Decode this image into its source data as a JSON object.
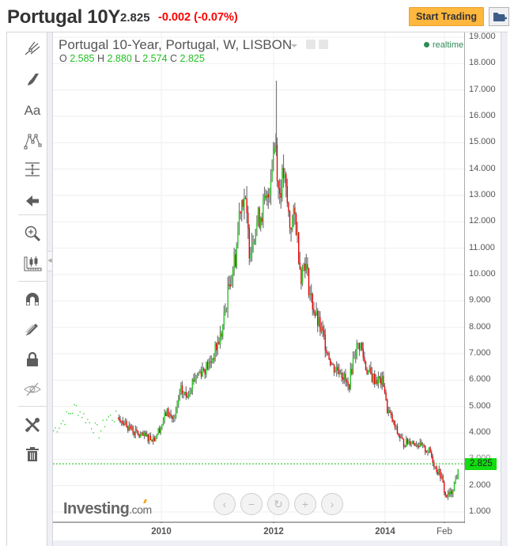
{
  "header": {
    "title": "Portugal 10Y",
    "price": "2.825",
    "change": "-0.002 (-0.07%)",
    "start_trading_label": "Start Trading",
    "add_to_portfolio_icon": "folder-plus-icon"
  },
  "toolbar": {
    "items": [
      {
        "name": "trend-line-tools",
        "icon": "crossed-lines-icon"
      },
      {
        "name": "brush-tool",
        "icon": "brush-icon"
      },
      {
        "name": "text-tool",
        "icon": "text-icon",
        "label": "Aa"
      },
      {
        "name": "pattern-tool",
        "icon": "pattern-icon"
      },
      {
        "name": "measure-tool",
        "icon": "measure-icon"
      },
      {
        "name": "back-tool",
        "icon": "arrow-left-icon"
      },
      {
        "name": "zoom-in-tool",
        "icon": "magnifier-plus-icon"
      },
      {
        "name": "chart-type-tool",
        "icon": "candles-ruler-icon"
      },
      {
        "name": "magnet-tool",
        "icon": "magnet-icon"
      },
      {
        "name": "drawing-mode-tool",
        "icon": "pencil-icon"
      },
      {
        "name": "lock-tool",
        "icon": "lock-icon"
      },
      {
        "name": "hide-tool",
        "icon": "eye-crossed-icon"
      },
      {
        "name": "settings-tool",
        "icon": "tools-icon"
      },
      {
        "name": "delete-tool",
        "icon": "trash-icon"
      }
    ]
  },
  "legend": {
    "title": "Portugal 10-Year, Portugal, W, LISBON",
    "o_label": "O",
    "o": "2.585",
    "h_label": "H",
    "h": "2.880",
    "l_label": "L",
    "l": "2.574",
    "c_label": "C",
    "c": "2.825",
    "realtime": "realtime"
  },
  "price_tag": "2.825",
  "logo": {
    "main": "Investing",
    "suffix": ".com"
  },
  "nav_buttons": [
    "‹",
    "−",
    "↻",
    "+",
    "›"
  ],
  "colors": {
    "up": "#22cc22",
    "down": "#ee0000",
    "wick": "#777777",
    "price_line": "#11bb11",
    "accent_button": "#ffb73e",
    "change_negative": "#ff0000"
  },
  "chart_data": {
    "type": "candlestick",
    "title": "Portugal 10-Year, Portugal, W, LISBON",
    "interval": "W",
    "xlabel": "",
    "ylabel": "",
    "x_tick_labels": [
      "2010",
      "2012",
      "2014",
      "Feb"
    ],
    "y_tick_labels": [
      "1.000",
      "2.000",
      "3.000",
      "4.000",
      "5.000",
      "6.000",
      "7.000",
      "8.000",
      "9.000",
      "10.000",
      "11.000",
      "12.000",
      "13.000",
      "14.000",
      "15.000",
      "16.000",
      "17.000",
      "18.000",
      "19.000"
    ],
    "ylim": [
      1,
      19
    ],
    "grid": true,
    "current_price": 2.825,
    "last_bar": {
      "open": 2.585,
      "high": 2.88,
      "low": 2.574,
      "close": 2.825
    },
    "approx_path": [
      {
        "date": "2008-07",
        "value": 4.1
      },
      {
        "date": "2008-10",
        "value": 4.6
      },
      {
        "date": "2008-12",
        "value": 5.0
      },
      {
        "date": "2009-02",
        "value": 4.6
      },
      {
        "date": "2009-04",
        "value": 4.1
      },
      {
        "date": "2009-06",
        "value": 4.6
      },
      {
        "date": "2009-09",
        "value": 4.1
      },
      {
        "date": "2009-11",
        "value": 3.9
      },
      {
        "date": "2010-01",
        "value": 3.9
      },
      {
        "date": "2010-04",
        "value": 4.8
      },
      {
        "date": "2010-05",
        "value": 6.4
      },
      {
        "date": "2010-07",
        "value": 5.3
      },
      {
        "date": "2010-10",
        "value": 6.2
      },
      {
        "date": "2010-12",
        "value": 6.9
      },
      {
        "date": "2011-03",
        "value": 7.7
      },
      {
        "date": "2011-06",
        "value": 10.5
      },
      {
        "date": "2011-07",
        "value": 12.9
      },
      {
        "date": "2011-09",
        "value": 11.0
      },
      {
        "date": "2011-11",
        "value": 12.3
      },
      {
        "date": "2012-01",
        "value": 14.5
      },
      {
        "date": "2012-01-30",
        "value": 15.2,
        "high": 17.4
      },
      {
        "date": "2012-03",
        "value": 13.5
      },
      {
        "date": "2012-05",
        "value": 11.7
      },
      {
        "date": "2012-07",
        "value": 10.2
      },
      {
        "date": "2012-09",
        "value": 8.4
      },
      {
        "date": "2012-11",
        "value": 7.5
      },
      {
        "date": "2013-01",
        "value": 6.4
      },
      {
        "date": "2013-04",
        "value": 5.8
      },
      {
        "date": "2013-07",
        "value": 7.5
      },
      {
        "date": "2013-09",
        "value": 6.9
      },
      {
        "date": "2013-12",
        "value": 6.0
      },
      {
        "date": "2014-01",
        "value": 5.2
      },
      {
        "date": "2014-04",
        "value": 4.0
      },
      {
        "date": "2014-06",
        "value": 3.4
      },
      {
        "date": "2014-08",
        "value": 3.6
      },
      {
        "date": "2014-10",
        "value": 3.3
      },
      {
        "date": "2014-12",
        "value": 2.7
      },
      {
        "date": "2015-01",
        "value": 2.2
      },
      {
        "date": "2015-03",
        "value": 1.6
      },
      {
        "date": "2015-04",
        "value": 2.1
      },
      {
        "date": "2015-05",
        "value": 2.825
      }
    ]
  }
}
